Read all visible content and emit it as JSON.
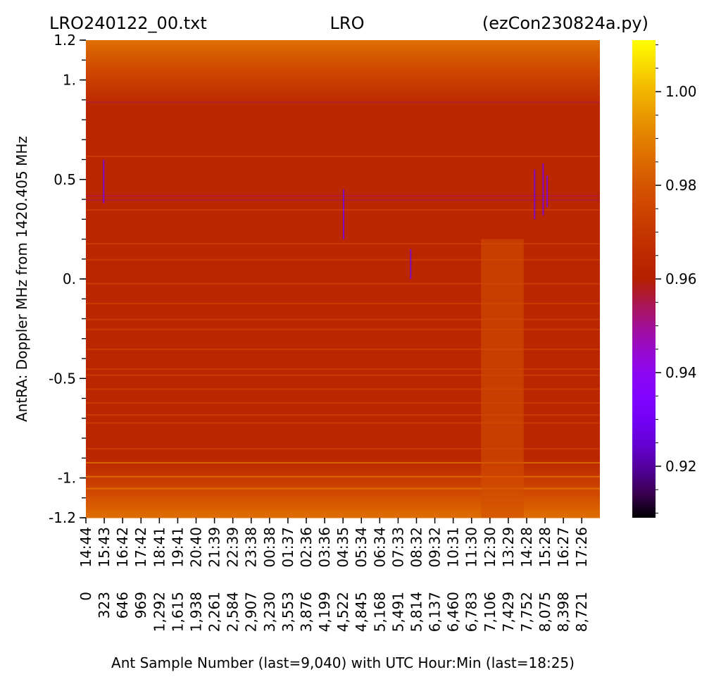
{
  "chart_data": {
    "type": "heatmap",
    "title_left": "LRO240122_00.txt",
    "title_center": "LRO",
    "title_right": "(ezCon230824a.py)",
    "xlabel": "Ant Sample Number (last=9,040) with UTC Hour:Min (last=18:25)",
    "ylabel": "AntRA:  Doppler MHz from 1420.405 MHz",
    "colormap": "gnuplot",
    "x_range": [
      0,
      9040
    ],
    "y_range": [
      -1.2,
      1.2
    ],
    "x_samples": [
      "0",
      "323",
      "646",
      "969",
      "1,292",
      "1,615",
      "1,938",
      "2,261",
      "2,584",
      "2,907",
      "3,230",
      "3,553",
      "3,876",
      "4,199",
      "4,522",
      "4,845",
      "5,168",
      "5,491",
      "5,814",
      "6,137",
      "6,460",
      "6,783",
      "7,106",
      "7,429",
      "7,752",
      "8,075",
      "8,398",
      "8,721"
    ],
    "x_times": [
      "14:44",
      "15:43",
      "16:42",
      "17:42",
      "18:41",
      "19:41",
      "20:40",
      "21:39",
      "22:39",
      "23:38",
      "00:38",
      "01:37",
      "02:36",
      "03:36",
      "04:35",
      "05:34",
      "06:34",
      "07:33",
      "08:32",
      "09:32",
      "10:31",
      "11:30",
      "12:30",
      "13:29",
      "14:28",
      "15:28",
      "16:27",
      "17:26"
    ],
    "y_ticks": [
      {
        "value": 1.2,
        "label": "1.2"
      },
      {
        "value": 1.0,
        "label": "1."
      },
      {
        "value": 0.5,
        "label": "0.5"
      },
      {
        "value": 0.0,
        "label": "0."
      },
      {
        "value": -0.5,
        "label": "-0.5"
      },
      {
        "value": -1.0,
        "label": "-1."
      },
      {
        "value": -1.2,
        "label": "-1.2"
      }
    ],
    "colorbar": {
      "range": [
        0.909,
        1.011
      ],
      "ticks": [
        {
          "value": 1.0,
          "label": "1.00"
        },
        {
          "value": 0.98,
          "label": "0.98"
        },
        {
          "value": 0.96,
          "label": "0.96"
        },
        {
          "value": 0.94,
          "label": "0.94"
        },
        {
          "value": 0.92,
          "label": "0.92"
        }
      ]
    },
    "base_level": 0.963,
    "edge_level": 0.986
  }
}
